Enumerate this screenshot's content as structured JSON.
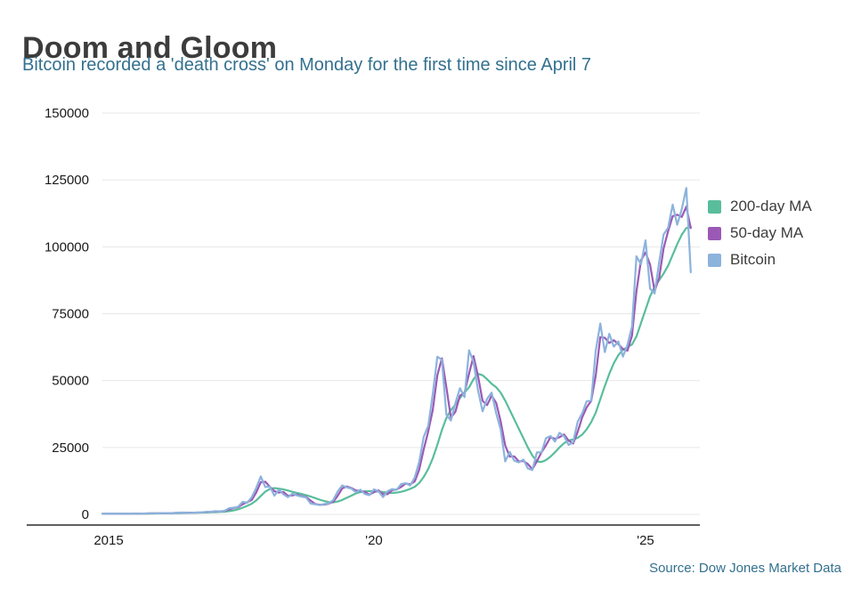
{
  "header": {
    "title": "Doom and Gloom",
    "subtitle": "Bitcoin recorded a 'death cross' on Monday for the first time since April 7"
  },
  "source": {
    "text": "Source: Dow Jones Market Data"
  },
  "colors": {
    "title": "#3c3c3c",
    "subtitle": "#33708f",
    "ma200": "#59bd9c",
    "ma50": "#9b59b6",
    "bitcoin": "#8cb3dc",
    "grid": "#e7e7e7",
    "axis": "#2b2b2b"
  },
  "chart_data": {
    "type": "line",
    "title": "Doom and Gloom",
    "subtitle": "Bitcoin recorded a 'death cross' on Monday for the first time since April 7",
    "xlabel": "",
    "ylabel": "",
    "xlim": [
      2015,
      2026
    ],
    "ylim": [
      0,
      150000
    ],
    "yticks": [
      0,
      25000,
      50000,
      75000,
      100000,
      125000,
      150000
    ],
    "xticks": [
      {
        "value": 2015,
        "label": "2015"
      },
      {
        "value": 2020,
        "label": "'20"
      },
      {
        "value": 2025,
        "label": "'25"
      }
    ],
    "grid": true,
    "legend_position": "right",
    "x": [
      2015.0,
      2015.083,
      2015.167,
      2015.25,
      2015.333,
      2015.417,
      2015.5,
      2015.583,
      2015.667,
      2015.75,
      2015.833,
      2015.917,
      2016.0,
      2016.083,
      2016.167,
      2016.25,
      2016.333,
      2016.417,
      2016.5,
      2016.583,
      2016.667,
      2016.75,
      2016.833,
      2016.917,
      2017.0,
      2017.083,
      2017.167,
      2017.25,
      2017.333,
      2017.417,
      2017.5,
      2017.583,
      2017.667,
      2017.75,
      2017.833,
      2017.917,
      2018.0,
      2018.083,
      2018.167,
      2018.25,
      2018.333,
      2018.417,
      2018.5,
      2018.583,
      2018.667,
      2018.75,
      2018.833,
      2018.917,
      2019.0,
      2019.083,
      2019.167,
      2019.25,
      2019.333,
      2019.417,
      2019.5,
      2019.583,
      2019.667,
      2019.75,
      2019.833,
      2019.917,
      2020.0,
      2020.083,
      2020.167,
      2020.25,
      2020.333,
      2020.417,
      2020.5,
      2020.583,
      2020.667,
      2020.75,
      2020.833,
      2020.917,
      2021.0,
      2021.083,
      2021.167,
      2021.25,
      2021.333,
      2021.417,
      2021.5,
      2021.583,
      2021.667,
      2021.75,
      2021.833,
      2021.917,
      2022.0,
      2022.083,
      2022.167,
      2022.25,
      2022.333,
      2022.417,
      2022.5,
      2022.583,
      2022.667,
      2022.75,
      2022.833,
      2022.917,
      2023.0,
      2023.083,
      2023.167,
      2023.25,
      2023.333,
      2023.417,
      2023.5,
      2023.583,
      2023.667,
      2023.75,
      2023.833,
      2023.917,
      2024.0,
      2024.083,
      2024.167,
      2024.25,
      2024.333,
      2024.417,
      2024.5,
      2024.583,
      2024.667,
      2024.75,
      2024.833,
      2024.917,
      2025.0,
      2025.083,
      2025.167,
      2025.25,
      2025.333,
      2025.417,
      2025.5,
      2025.583,
      2025.667,
      2025.75,
      2025.833
    ],
    "series": [
      {
        "name": "200-day MA",
        "color": "#59bd9c",
        "values": [
          220,
          225,
          228,
          230,
          233,
          237,
          242,
          246,
          250,
          258,
          275,
          305,
          330,
          352,
          375,
          400,
          430,
          468,
          508,
          548,
          588,
          620,
          652,
          700,
          760,
          830,
          900,
          1000,
          1200,
          1500,
          1900,
          2500,
          3200,
          4000,
          5200,
          6900,
          8500,
          9500,
          9800,
          9600,
          9300,
          8900,
          8400,
          8000,
          7600,
          7200,
          6700,
          6100,
          5500,
          5000,
          4600,
          4500,
          4800,
          5400,
          6200,
          7000,
          7800,
          8300,
          8600,
          8700,
          8600,
          8500,
          8300,
          8100,
          8000,
          8100,
          8400,
          8900,
          9500,
          10300,
          11700,
          14000,
          17000,
          21000,
          26000,
          31500,
          36000,
          39000,
          41000,
          43500,
          45500,
          47500,
          50500,
          52500,
          52000,
          50500,
          48800,
          47500,
          45500,
          42500,
          39000,
          35500,
          32000,
          28500,
          25000,
          22000,
          19800,
          19600,
          20300,
          21600,
          23200,
          25000,
          26600,
          27600,
          28000,
          28600,
          29800,
          31800,
          34500,
          38000,
          43000,
          48000,
          52500,
          56500,
          59500,
          61500,
          62500,
          63500,
          66500,
          71500,
          76500,
          81500,
          85000,
          87500,
          90000,
          93000,
          97000,
          101000,
          104500,
          107000,
          107500
        ]
      },
      {
        "name": "50-day MA",
        "color": "#9b59b6",
        "values": [
          217,
          236,
          249,
          240,
          233,
          247,
          274,
          257,
          233,
          275,
          346,
          404,
          399,
          403,
          427,
          432,
          490,
          602,
          649,
          600,
          592,
          655,
          723,
          854,
          967,
          1080,
          1130,
          1209,
          1817,
          2383,
          2678,
          3789,
          4521,
          5403,
          8192,
          12036,
          12189,
          10309,
          8685,
          8107,
          8367,
          6949,
          7092,
          7409,
          6831,
          6471,
          5167,
          3880,
          3600,
          3656,
          3980,
          4728,
          6962,
          9696,
          10451,
          9858,
          8962,
          8746,
          8384,
          7381,
          8272,
          8975,
          7519,
          7548,
          9060,
          9299,
          10230,
          11502,
          11232,
          12291,
          16711,
          24313,
          31058,
          39126,
          52028,
          58334,
          47541,
          36186,
          38333,
          44396,
          45478,
          52554,
          59162,
          51656,
          42395,
          40838,
          44366,
          41626,
          34753,
          25788,
          21560,
          21693,
          19740,
          19963,
          18832,
          16858,
          19843,
          23143,
          25813,
          28873,
          28244,
          28848,
          29854,
          27581,
          26449,
          30817,
          36195,
          39994,
          42424,
          51890,
          66266,
          65985,
          64064,
          65085,
          63649,
          61794,
          61149,
          66772,
          83332,
          94939,
          97917,
          93377,
          83449,
          88378,
          99403,
          105867,
          111447,
          111997,
          111146,
          115000,
          107000
        ]
      },
      {
        "name": "Bitcoin",
        "color": "#8cb3dc",
        "values": [
          217,
          254,
          244,
          236,
          230,
          263,
          284,
          230,
          236,
          314,
          377,
          430,
          368,
          437,
          416,
          448,
          531,
          673,
          624,
          575,
          609,
          700,
          745,
          963,
          970,
          1189,
          1071,
          1347,
          2286,
          2480,
          2875,
          4703,
          4338,
          6468,
          9916,
          14156,
          10221,
          10397,
          6973,
          9240,
          7494,
          6404,
          7780,
          7037,
          6625,
          6317,
          4017,
          3742,
          3457,
          3854,
          4105,
          5350,
          8574,
          10817,
          10085,
          9630,
          8293,
          9199,
          7569,
          7193,
          9350,
          8599,
          6438,
          8658,
          9461,
          9137,
          11323,
          11680,
          10784,
          13797,
          19625,
          29001,
          33114,
          45137,
          58918,
          57750,
          37332,
          35040,
          41626,
          47166,
          43790,
          61318,
          57005,
          46306,
          38483,
          43193,
          45538,
          37714,
          31792,
          19784,
          23336,
          20049,
          19431,
          20495,
          17168,
          16547,
          23139,
          23147,
          28478,
          29268,
          27219,
          30477,
          29230,
          25931,
          26967,
          34667,
          37723,
          42265,
          42582,
          61198,
          71333,
          60636,
          67491,
          62678,
          64619,
          58969,
          63329,
          70215,
          96449,
          93429,
          102405,
          84349,
          82548,
          94207,
          104598,
          107135,
          115758,
          108236,
          114056,
          122000,
          90500
        ]
      }
    ]
  }
}
